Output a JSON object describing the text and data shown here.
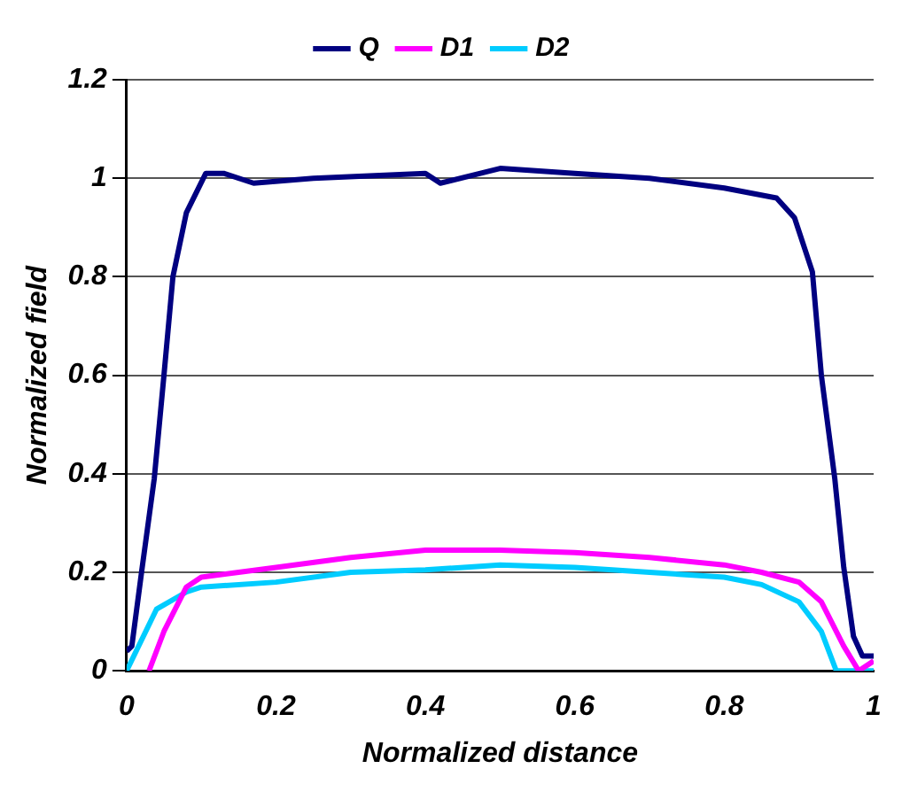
{
  "chart_data": {
    "type": "line",
    "xlabel": "Normalized distance",
    "ylabel": "Normalized field",
    "xlim": [
      0,
      1
    ],
    "xticks": [
      0,
      0.2,
      0.4,
      0.6,
      0.8,
      1
    ],
    "ylim": [
      0,
      1.2
    ],
    "yticks": [
      0,
      0.2,
      0.4,
      0.6,
      0.8,
      1,
      1.2
    ],
    "grid": "y",
    "legend": "top",
    "marker": "none",
    "line_style": "solid",
    "series": [
      {
        "name": "Q",
        "color": "#000080",
        "x": [
          0,
          0.007,
          0.02,
          0.037,
          0.05,
          0.062,
          0.08,
          0.106,
          0.13,
          0.17,
          0.25,
          0.4,
          0.42,
          0.5,
          0.6,
          0.7,
          0.8,
          0.87,
          0.894,
          0.918,
          0.93,
          0.948,
          0.96,
          0.973,
          0.985,
          1
        ],
        "values": [
          0.04,
          0.05,
          0.2,
          0.39,
          0.6,
          0.8,
          0.93,
          1.01,
          1.01,
          0.99,
          1.0,
          1.01,
          0.99,
          1.02,
          1.01,
          1.0,
          0.98,
          0.96,
          0.92,
          0.81,
          0.6,
          0.39,
          0.21,
          0.07,
          0.03,
          0.03
        ]
      },
      {
        "name": "D1",
        "color": "#ff00ff",
        "x": [
          0.03,
          0.05,
          0.08,
          0.1,
          0.15,
          0.2,
          0.3,
          0.4,
          0.5,
          0.6,
          0.7,
          0.8,
          0.85,
          0.9,
          0.93,
          0.96,
          0.98,
          1
        ],
        "values": [
          0,
          0.08,
          0.17,
          0.19,
          0.2,
          0.21,
          0.23,
          0.245,
          0.245,
          0.24,
          0.23,
          0.215,
          0.2,
          0.18,
          0.14,
          0.05,
          0,
          0.02
        ]
      },
      {
        "name": "D2",
        "color": "#00ccff",
        "x": [
          0,
          0.04,
          0.08,
          0.1,
          0.2,
          0.3,
          0.4,
          0.5,
          0.6,
          0.7,
          0.8,
          0.85,
          0.9,
          0.93,
          0.95,
          1
        ],
        "values": [
          0,
          0.125,
          0.16,
          0.17,
          0.18,
          0.2,
          0.205,
          0.215,
          0.21,
          0.2,
          0.19,
          0.175,
          0.14,
          0.08,
          0,
          0
        ]
      }
    ]
  }
}
